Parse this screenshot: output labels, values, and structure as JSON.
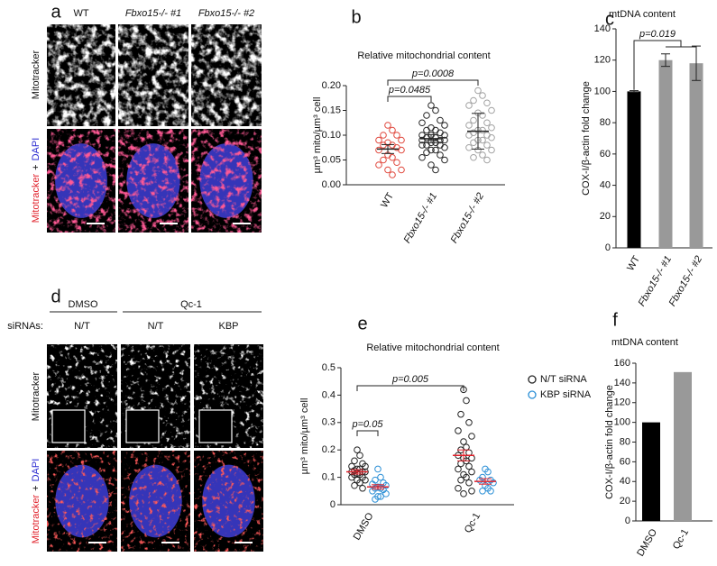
{
  "figure_a": {
    "letter": "a",
    "columns": [
      "WT",
      "Fbxo15-/- #1",
      "Fbxo15-/- #2"
    ],
    "row_labels": [
      "Mitotracker",
      [
        "Mitotracker",
        "+",
        "DAPI"
      ]
    ]
  },
  "figure_d": {
    "letter": "d",
    "treatments": [
      "DMSO",
      "Qc-1"
    ],
    "sirna_label": "siRNAs:",
    "sirnas": [
      "N/T",
      "N/T",
      "KBP"
    ],
    "row_labels": [
      "Mitotracker",
      [
        "Mitotracker",
        "+",
        "DAPI"
      ]
    ]
  },
  "chart_data": [
    {
      "type": "dotplot",
      "letter": "b",
      "title": "Relative mitochondrial content",
      "y_label": "µm³ mito/µm³ cell",
      "categories": [
        "WT",
        "Fbxo15-/- #1",
        "Fbxo15-/- #2"
      ],
      "series": [
        {
          "color": "#e0473c",
          "values": [
            [
              0.12,
              0.11,
              0.1,
              0.1,
              0.09,
              0.09,
              0.085,
              0.08,
              0.08,
              0.075,
              0.07,
              0.07,
              0.06,
              0.055,
              0.05,
              0.045,
              0.04,
              0.03,
              0.03,
              0.02
            ],
            null,
            null
          ],
          "means": [
            0.072,
            null,
            null
          ],
          "errors": [
            0.009,
            null,
            null
          ]
        },
        {
          "color": "#222222",
          "values": [
            null,
            [
              0.16,
              0.15,
              0.14,
              0.13,
              0.125,
              0.12,
              0.115,
              0.11,
              0.11,
              0.105,
              0.1,
              0.1,
              0.1,
              0.095,
              0.095,
              0.09,
              0.09,
              0.09,
              0.085,
              0.085,
              0.08,
              0.08,
              0.08,
              0.075,
              0.07,
              0.07,
              0.065,
              0.06,
              0.055,
              0.05,
              0.04,
              0.03
            ],
            null
          ],
          "means": [
            null,
            0.093,
            null
          ],
          "errors": [
            null,
            0.008,
            null
          ]
        },
        {
          "color": "#a0a0a0",
          "values": [
            null,
            null,
            [
              0.19,
              0.18,
              0.17,
              0.165,
              0.16,
              0.15,
              0.145,
              0.14,
              0.13,
              0.125,
              0.12,
              0.115,
              0.11,
              0.11,
              0.105,
              0.1,
              0.1,
              0.095,
              0.09,
              0.09,
              0.085,
              0.08,
              0.075,
              0.07,
              0.07,
              0.06,
              0.055,
              0.05
            ]
          ],
          "means": [
            null,
            null,
            0.108
          ],
          "errors": [
            null,
            null,
            0.036
          ]
        }
      ],
      "mean_color": "#222222",
      "ylim": [
        0,
        0.2
      ],
      "yticks": [
        {
          "value": 0,
          "label": "0.00"
        },
        {
          "value": 0.05,
          "label": "0.05"
        },
        {
          "value": 0.1,
          "label": "0.10"
        },
        {
          "value": 0.15,
          "label": "0.15"
        },
        {
          "value": 0.2,
          "label": "0.20"
        }
      ],
      "annotations": [
        "p=0.0485",
        "p=0.0008"
      ]
    },
    {
      "type": "bar",
      "letter": "c",
      "title": "mtDNA content",
      "y_label": "COX-I/β-actin fold change",
      "categories": [
        "WT",
        "Fbxo15-/- #1",
        "Fbxo15-/- #2"
      ],
      "values": [
        100,
        120,
        118
      ],
      "errors": [
        0.5,
        4,
        11
      ],
      "colors": [
        "#000000",
        "#999999",
        "#999999"
      ],
      "ylim": [
        0,
        140
      ],
      "yticks": [
        0,
        20,
        40,
        60,
        80,
        100,
        120,
        140
      ],
      "annotations": [
        "p=0.019"
      ]
    },
    {
      "type": "dotplot",
      "letter": "e",
      "title": "Relative mitochondrial content",
      "y_label": "µm³ mito/µm³ cell",
      "categories": [
        "DMSO",
        "Qc-1"
      ],
      "series": [
        {
          "name": "N/T siRNA",
          "color": "#222222",
          "values": [
            [
              0.2,
              0.18,
              0.16,
              0.15,
              0.14,
              0.14,
              0.13,
              0.13,
              0.125,
              0.12,
              0.12,
              0.12,
              0.115,
              0.11,
              0.11,
              0.1,
              0.1,
              0.09,
              0.09,
              0.08,
              0.07,
              0.06
            ],
            [
              0.42,
              0.38,
              0.33,
              0.3,
              0.27,
              0.25,
              0.23,
              0.21,
              0.2,
              0.19,
              0.18,
              0.17,
              0.17,
              0.16,
              0.15,
              0.14,
              0.13,
              0.12,
              0.11,
              0.1,
              0.09,
              0.08,
              0.06,
              0.05,
              0.04
            ]
          ],
          "means": [
            0.12,
            0.18
          ],
          "errors": [
            0.008,
            0.02
          ]
        },
        {
          "name": "KBP siRNA",
          "color": "#2b8fd6",
          "values": [
            [
              0.13,
              0.1,
              0.09,
              0.08,
              0.075,
              0.07,
              0.065,
              0.06,
              0.06,
              0.055,
              0.05,
              0.04,
              0.03,
              0.03,
              0.02
            ],
            [
              0.13,
              0.12,
              0.1,
              0.09,
              0.09,
              0.08,
              0.07,
              0.06,
              0.05,
              0.05
            ]
          ],
          "means": [
            0.065,
            0.085
          ],
          "errors": [
            0.008,
            0.01
          ]
        }
      ],
      "mean_color": "#e0202a",
      "ylim": [
        0,
        0.5
      ],
      "yticks": [
        0,
        0.1,
        0.2,
        0.3,
        0.4,
        0.5
      ],
      "annotations": [
        "p=0.005",
        "p=0.05"
      ]
    },
    {
      "type": "bar",
      "letter": "f",
      "title": "mtDNA content",
      "y_label": "COX-I/β-actin fold change",
      "categories": [
        "DMSO",
        "Qc-1"
      ],
      "values": [
        100,
        151
      ],
      "colors": [
        "#000000",
        "#999999"
      ],
      "ylim": [
        0,
        160
      ],
      "yticks": [
        0,
        20,
        40,
        60,
        80,
        100,
        120,
        140,
        160
      ]
    }
  ]
}
